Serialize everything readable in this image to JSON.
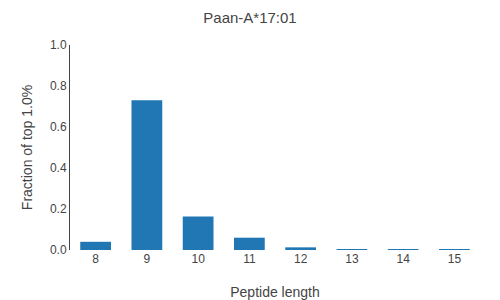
{
  "chart_data": {
    "type": "bar",
    "title": "Paan-A*17:01",
    "xlabel": "Peptide length",
    "ylabel": "Fraction of top 1.0%",
    "categories": [
      8,
      9,
      10,
      11,
      12,
      13,
      14,
      15
    ],
    "values": [
      0.04,
      0.73,
      0.163,
      0.06,
      0.013,
      0.004,
      0.003,
      0.004
    ],
    "color": "#2077b4",
    "ylim": [
      0.0,
      1.0
    ],
    "yticks": [
      {
        "value": 0,
        "label": "0.0"
      },
      0.2,
      0.4,
      0.6,
      0.8,
      {
        "value": 1,
        "label": "1.0"
      }
    ],
    "grid": false
  }
}
